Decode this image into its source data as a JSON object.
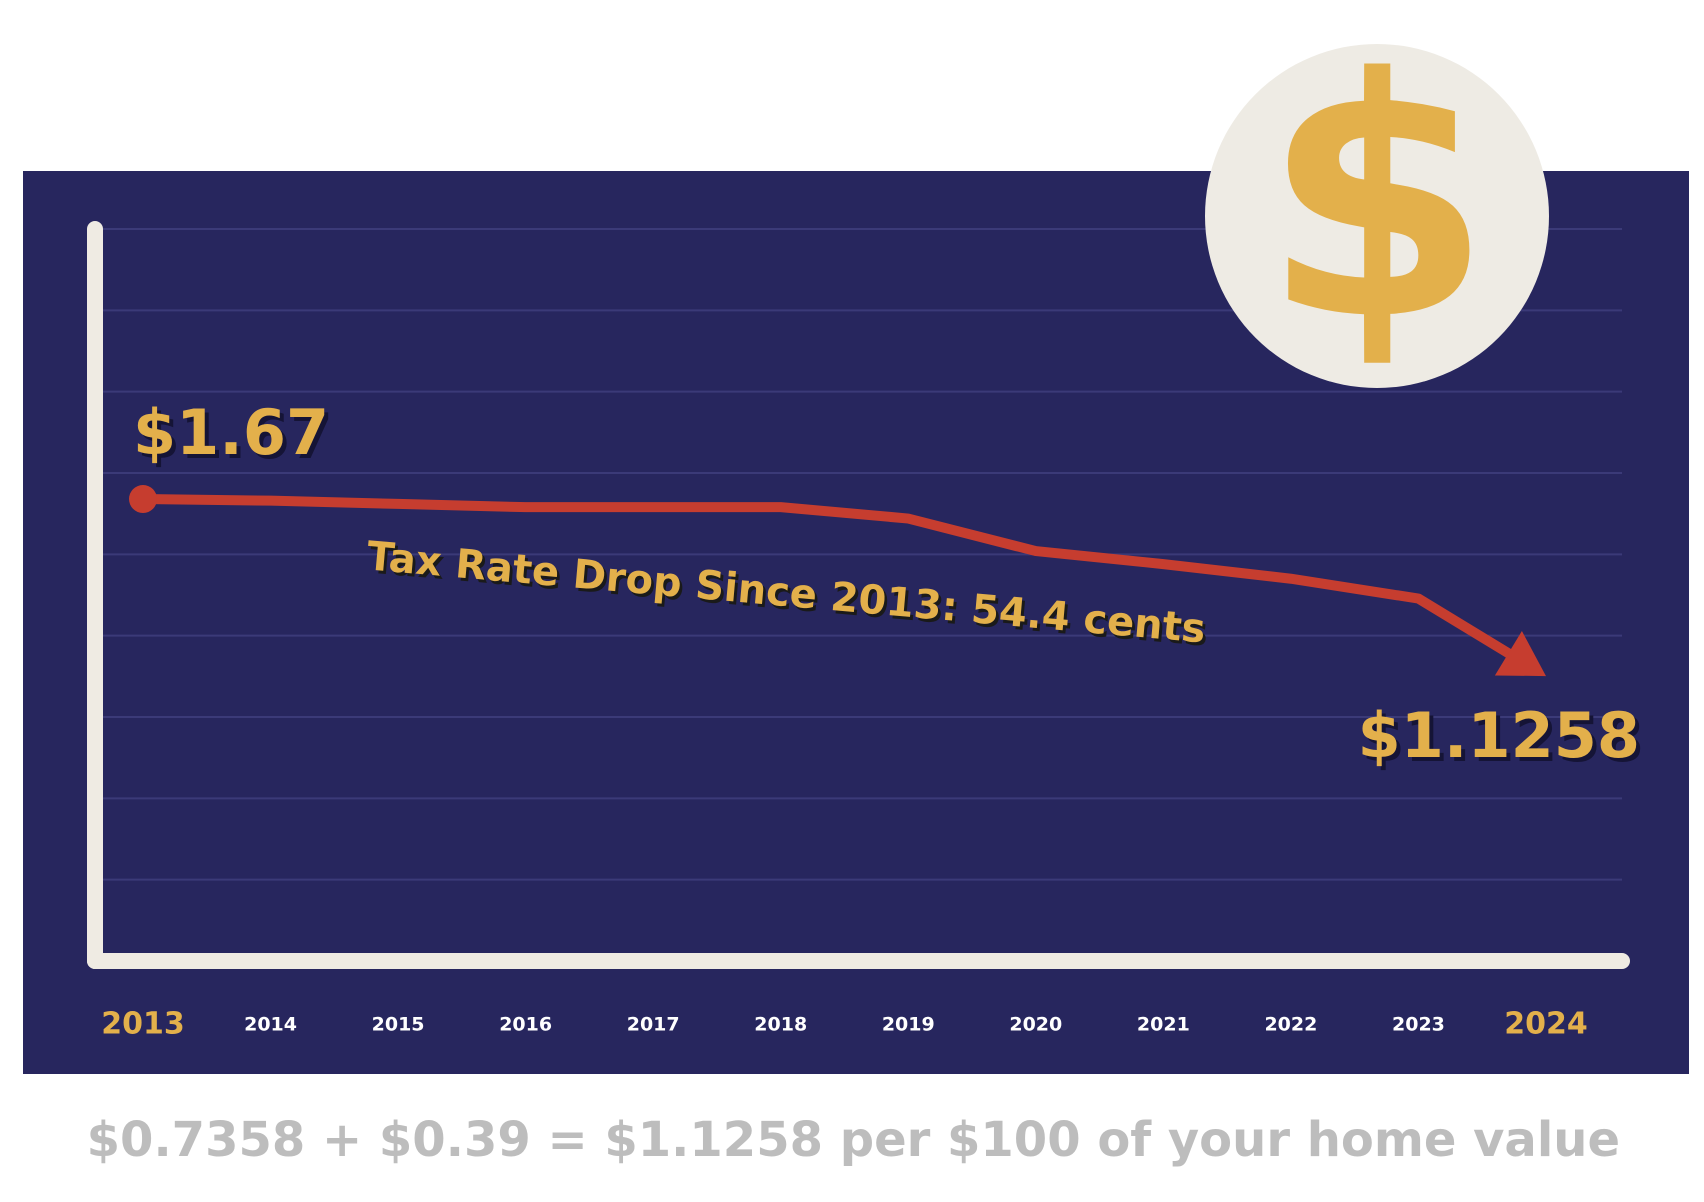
{
  "chart_data": {
    "type": "line",
    "categories": [
      "2013",
      "2014",
      "2015",
      "2016",
      "2017",
      "2018",
      "2019",
      "2020",
      "2021",
      "2022",
      "2023",
      "2024"
    ],
    "values": [
      1.67,
      1.665,
      1.655,
      1.645,
      1.645,
      1.645,
      1.61,
      1.51,
      1.47,
      1.425,
      1.364,
      1.1258
    ],
    "value_labels": [
      "$1.67",
      null,
      null,
      null,
      null,
      null,
      null,
      null,
      null,
      null,
      null,
      "$1.1258"
    ],
    "color": "#c63d2f",
    "ylim": [
      0.25,
      2.5
    ],
    "grid": true,
    "annotation": "Tax Rate Drop Since 2013: 54.4 cents",
    "footnote": "$0.7358 + $0.39 = $1.1258 per $100 of your home value"
  }
}
